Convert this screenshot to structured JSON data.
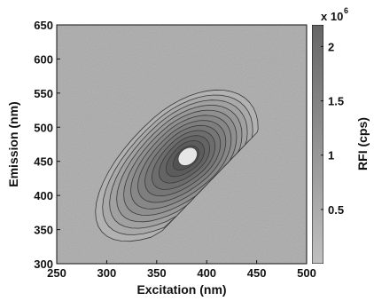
{
  "chart_data": {
    "type": "contour",
    "xlabel": "Excitation (nm)",
    "ylabel": "Emission (nm)",
    "colorbar_label": "RFI (cps)",
    "colorbar_multiplier": "x 10",
    "colorbar_exponent": "6",
    "xlim": [
      250,
      500
    ],
    "ylim": [
      300,
      650
    ],
    "colorbar_range": [
      0,
      2.2
    ],
    "x_ticks": [
      "250",
      "300",
      "350",
      "400",
      "450",
      "500"
    ],
    "x_tick_values": [
      250,
      300,
      350,
      400,
      450,
      500
    ],
    "y_ticks": [
      "300",
      "350",
      "400",
      "450",
      "500",
      "550",
      "600",
      "650"
    ],
    "y_tick_values": [
      300,
      350,
      400,
      450,
      500,
      550,
      600,
      650
    ],
    "colorbar_ticks": [
      "0.5",
      "1",
      "1.5",
      "2"
    ],
    "colorbar_tick_values": [
      0.5,
      1,
      1.5,
      2
    ],
    "peak": {
      "excitation": 381,
      "emission": 457,
      "rfi": 2.1
    },
    "grid": false,
    "colormap": "grayscale"
  }
}
